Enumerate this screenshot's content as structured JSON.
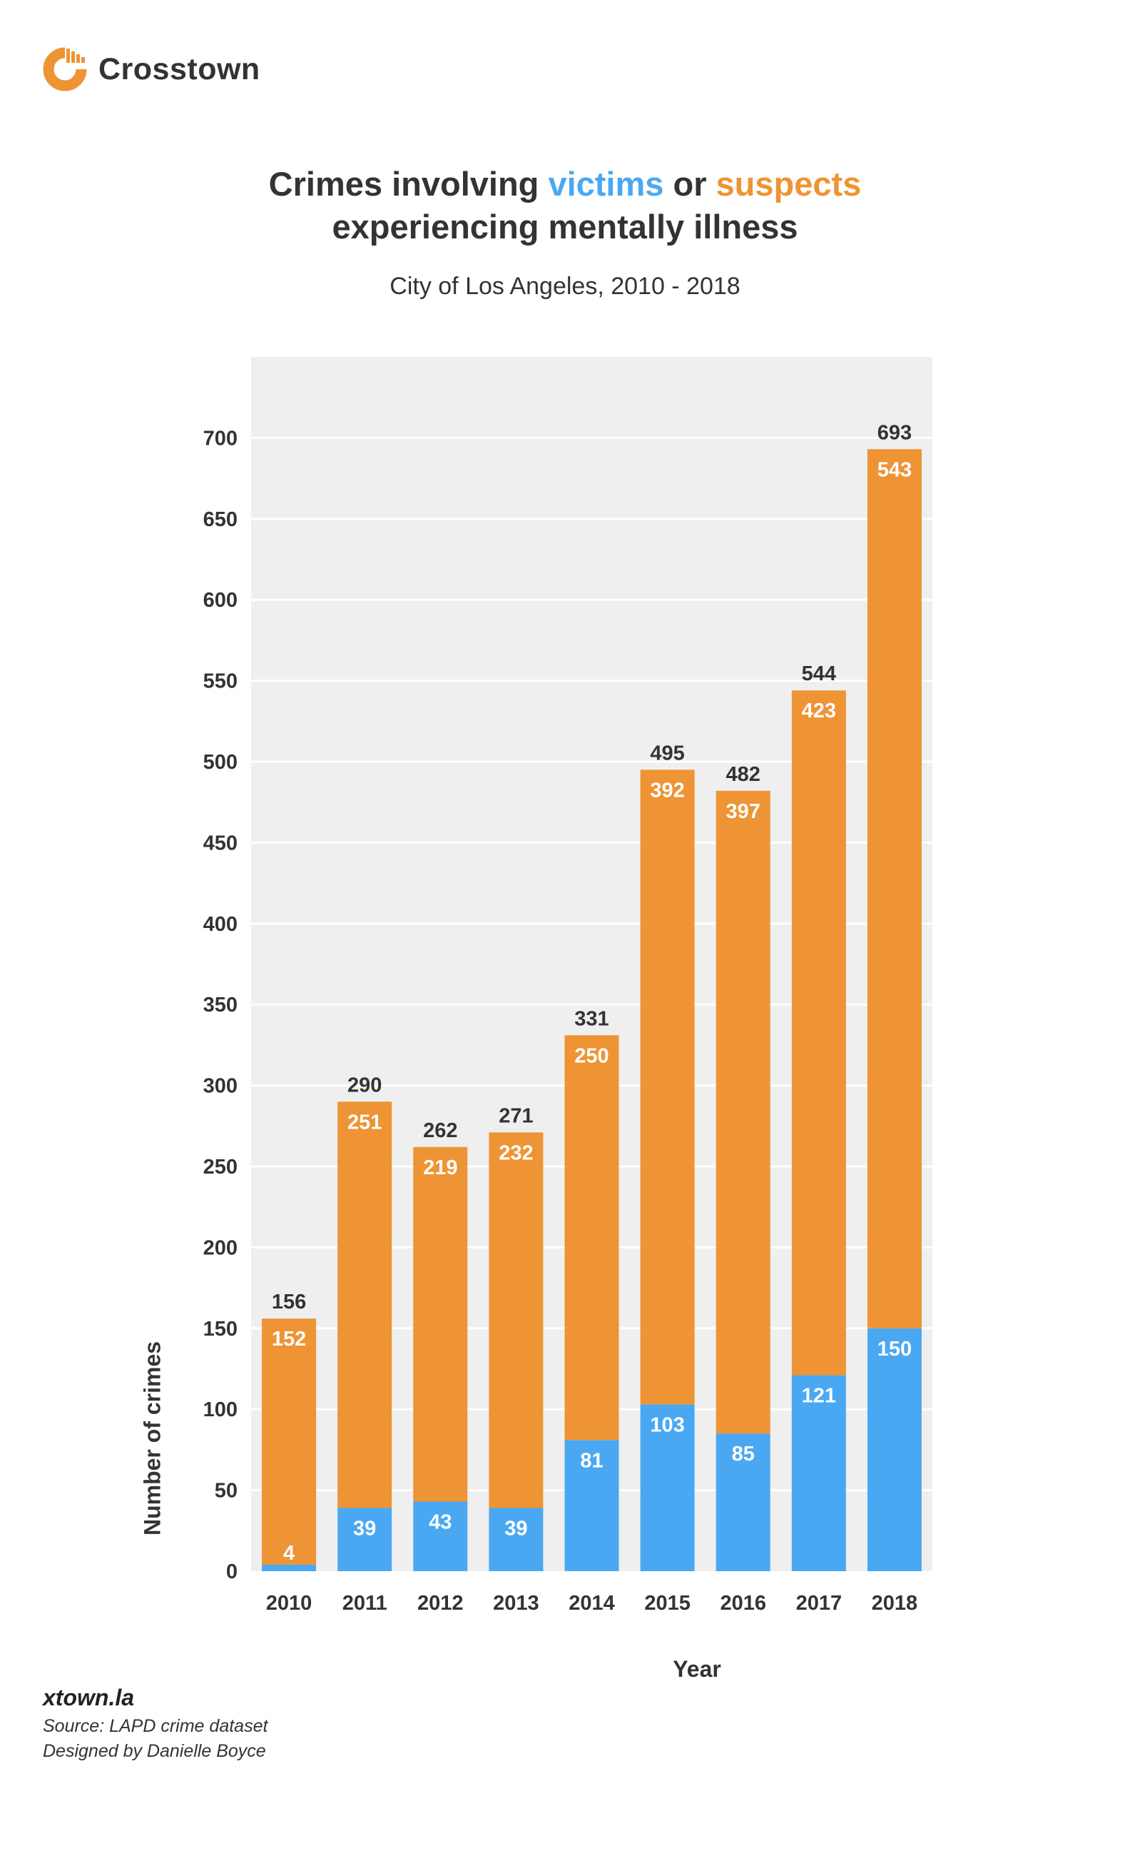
{
  "brand": {
    "name": "Crosstown",
    "logo_icon": "crosstown-logo-icon"
  },
  "title": {
    "pre": "Crimes involving ",
    "victims": "victims",
    "mid": " or ",
    "suspects": "suspects",
    "line2": "experiencing mentally illness"
  },
  "subtitle": "City of Los Angeles, 2010 - 2018",
  "footer": {
    "site": "xtown.la",
    "source": "Source: LAPD crime dataset",
    "designer": "Designed by Danielle Boyce"
  },
  "colors": {
    "victims": "#4aa8f2",
    "suspects": "#ee9434",
    "plot_bg": "#efefef",
    "grid": "#ffffff"
  },
  "chart_data": {
    "type": "bar",
    "stacked": true,
    "xlabel": "Year",
    "ylabel": "Number of crimes",
    "ylim": [
      0,
      750
    ],
    "yticks": [
      0,
      50,
      100,
      150,
      200,
      250,
      300,
      350,
      400,
      450,
      500,
      550,
      600,
      650,
      700
    ],
    "grid": true,
    "categories": [
      "2010",
      "2011",
      "2012",
      "2013",
      "2014",
      "2015",
      "2016",
      "2017",
      "2018"
    ],
    "series": [
      {
        "color": "#4aa8f2",
        "values": [
          4,
          39,
          43,
          39,
          81,
          103,
          85,
          121,
          150
        ]
      },
      {
        "color": "#ee9434",
        "values": [
          152,
          251,
          219,
          232,
          250,
          392,
          397,
          423,
          543
        ]
      }
    ],
    "totals": [
      156,
      290,
      262,
      271,
      331,
      495,
      482,
      544,
      693
    ]
  }
}
